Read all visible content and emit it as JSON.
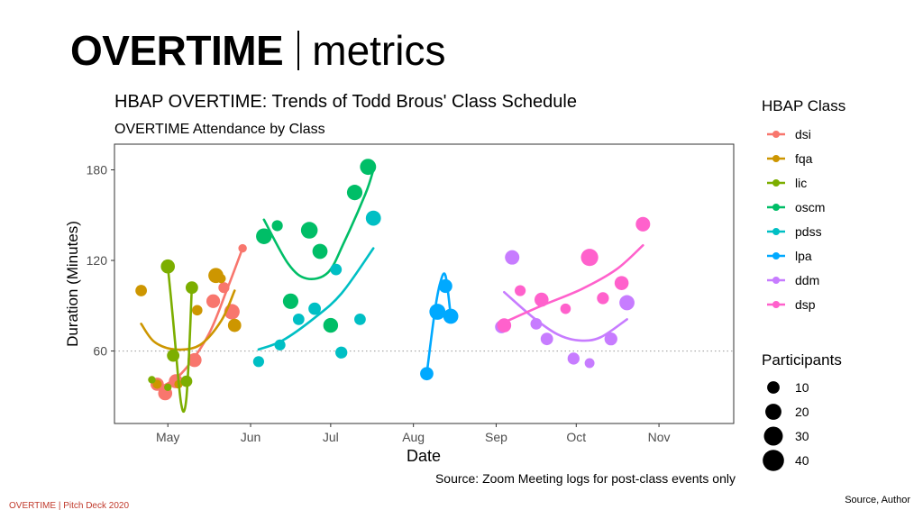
{
  "slide": {
    "title_bold": "OVERTIME",
    "title_light": "metrics",
    "footer_left": "OVERTIME |  Pitch Deck 2020",
    "footer_right": "Source, Author"
  },
  "chart_data": {
    "type": "scatter",
    "title": "HBAP OVERTIME: Trends of Todd Brous' Class Schedule",
    "subtitle": "OVERTIME Attendance by Class",
    "xlabel": "Date",
    "ylabel": "Duration (Minutes)",
    "caption": "Source: Zoom Meeting logs for post-class events only",
    "x_ticks": [
      "May",
      "Jun",
      "Jul",
      "Aug",
      "Sep",
      "Oct",
      "Nov"
    ],
    "x_tick_days": [
      0,
      31,
      61,
      92,
      123,
      153,
      184
    ],
    "xlim_days": [
      -20,
      212
    ],
    "y_ticks": [
      60,
      120,
      180
    ],
    "ylim": [
      12,
      197
    ],
    "reference_line_y": 60,
    "legend_color_title": "HBAP Class",
    "legend_size_title": "Participants",
    "size_legend": [
      10,
      20,
      30,
      40
    ],
    "series": [
      {
        "name": "dsi",
        "color": "#F8766D",
        "points": [
          [
            -4,
            38,
            12
          ],
          [
            -1,
            32,
            14
          ],
          [
            3,
            40,
            14
          ],
          [
            10,
            54,
            14
          ],
          [
            17,
            93,
            13
          ],
          [
            21,
            102,
            7
          ],
          [
            24,
            86,
            18
          ],
          [
            28,
            128,
            3
          ]
        ],
        "trend": [
          [
            -4,
            35
          ],
          [
            5,
            45
          ],
          [
            15,
            70
          ],
          [
            22,
            100
          ],
          [
            28,
            128
          ]
        ]
      },
      {
        "name": "fqa",
        "color": "#CD9600",
        "points": [
          [
            -10,
            100,
            8
          ],
          [
            -4,
            38,
            4
          ],
          [
            4,
            38,
            3
          ],
          [
            11,
            87,
            6
          ],
          [
            18,
            110,
            17
          ],
          [
            20,
            108,
            4
          ],
          [
            25,
            77,
            12
          ]
        ],
        "trend": [
          [
            -10,
            78
          ],
          [
            -5,
            66
          ],
          [
            3,
            61
          ],
          [
            12,
            64
          ],
          [
            20,
            80
          ],
          [
            25,
            100
          ]
        ]
      },
      {
        "name": "lic",
        "color": "#7CAE00",
        "points": [
          [
            -6,
            41,
            2
          ],
          [
            0,
            36,
            2
          ],
          [
            0,
            116,
            14
          ],
          [
            2,
            57,
            10
          ],
          [
            7,
            40,
            8
          ],
          [
            9,
            102,
            10
          ]
        ],
        "trend": [
          [
            0,
            116
          ],
          [
            2,
            80
          ],
          [
            3,
            60
          ],
          [
            4,
            40
          ],
          [
            5,
            25
          ],
          [
            6,
            20
          ],
          [
            7,
            30
          ],
          [
            8,
            60
          ],
          [
            9,
            104
          ]
        ]
      },
      {
        "name": "oscm",
        "color": "#00BE67",
        "points": [
          [
            36,
            136,
            19
          ],
          [
            41,
            143,
            7
          ],
          [
            46,
            93,
            18
          ],
          [
            53,
            140,
            22
          ],
          [
            57,
            126,
            17
          ],
          [
            61,
            77,
            16
          ],
          [
            70,
            165,
            18
          ],
          [
            75,
            182,
            20
          ]
        ],
        "trend": [
          [
            36,
            147
          ],
          [
            45,
            118
          ],
          [
            52,
            108
          ],
          [
            60,
            112
          ],
          [
            66,
            132
          ],
          [
            74,
            164
          ],
          [
            77,
            180
          ]
        ]
      },
      {
        "name": "pdss",
        "color": "#00BFC4",
        "points": [
          [
            34,
            53,
            7
          ],
          [
            42,
            64,
            7
          ],
          [
            49,
            81,
            8
          ],
          [
            55,
            88,
            10
          ],
          [
            63,
            114,
            8
          ],
          [
            65,
            59,
            9
          ],
          [
            72,
            81,
            8
          ],
          [
            77,
            148,
            17
          ]
        ],
        "trend": [
          [
            34,
            61
          ],
          [
            43,
            67
          ],
          [
            55,
            82
          ],
          [
            65,
            98
          ],
          [
            77,
            128
          ]
        ]
      },
      {
        "name": "lpa",
        "color": "#00A9FF",
        "points": [
          [
            97,
            45,
            12
          ],
          [
            101,
            86,
            20
          ],
          [
            104,
            103,
            13
          ],
          [
            106,
            83,
            17
          ]
        ],
        "trend": [
          [
            97,
            45
          ],
          [
            100,
            86
          ],
          [
            102,
            105
          ],
          [
            104,
            110
          ],
          [
            106,
            83
          ]
        ]
      },
      {
        "name": "ddm",
        "color": "#C77CFF",
        "points": [
          [
            125,
            76,
            11
          ],
          [
            129,
            122,
            15
          ],
          [
            138,
            78,
            8
          ],
          [
            142,
            68,
            10
          ],
          [
            152,
            55,
            9
          ],
          [
            158,
            52,
            5
          ],
          [
            166,
            68,
            11
          ],
          [
            172,
            92,
            17
          ]
        ],
        "trend": [
          [
            126,
            99
          ],
          [
            137,
            82
          ],
          [
            146,
            71
          ],
          [
            154,
            67
          ],
          [
            162,
            69
          ],
          [
            172,
            81
          ]
        ]
      },
      {
        "name": "dsp",
        "color": "#FF61CC",
        "points": [
          [
            126,
            77,
            14
          ],
          [
            132,
            100,
            7
          ],
          [
            140,
            94,
            14
          ],
          [
            149,
            88,
            6
          ],
          [
            158,
            122,
            24
          ],
          [
            163,
            95,
            9
          ],
          [
            170,
            105,
            14
          ],
          [
            178,
            144,
            15
          ]
        ],
        "trend": [
          [
            126,
            79
          ],
          [
            140,
            90
          ],
          [
            155,
            101
          ],
          [
            168,
            114
          ],
          [
            178,
            130
          ]
        ]
      }
    ]
  }
}
